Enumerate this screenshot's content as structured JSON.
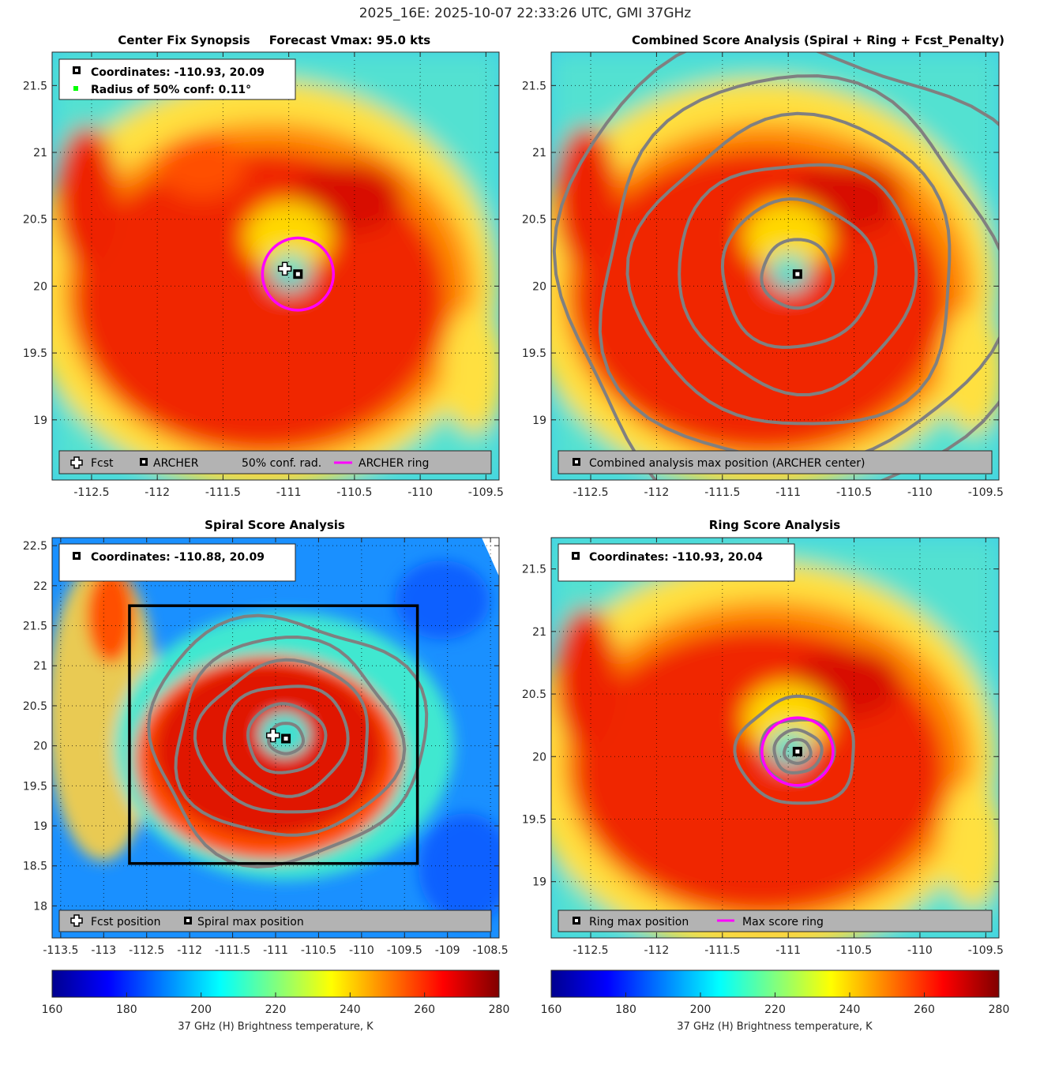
{
  "figure_title": "2025_16E: 2025-10-07 22:33:26 UTC, GMI 37GHz",
  "chart_data": [
    {
      "id": "synopsis",
      "type": "heatmap",
      "title_left": "Center Fix Synopsis",
      "title_right": "Forecast Vmax: 95.0 kts",
      "xlim": [
        -112.8,
        -109.4
      ],
      "ylim": [
        18.55,
        21.75
      ],
      "xticks": [
        -112.5,
        -112,
        -111.5,
        -111,
        -110.5,
        -110,
        -109.5
      ],
      "xtick_labels": [
        "-112.5",
        "-112",
        "-111.5",
        "-111",
        "-110.5",
        "-110",
        "-109.5"
      ],
      "yticks": [
        19,
        19.5,
        20,
        20.5,
        21,
        21.5
      ],
      "ytick_labels": [
        "19",
        "19.5",
        "20",
        "20.5",
        "21",
        "21.5"
      ],
      "center": [
        -110.93,
        20.09
      ],
      "fcst": [
        -111.03,
        20.13
      ],
      "ring": {
        "center": [
          -110.93,
          20.09
        ],
        "radius_deg": 0.27
      },
      "info_lines": [
        "Coordinates: -110.93, 20.09",
        "Radius of 50% conf: 0.11°"
      ],
      "legend": [
        "Fcst",
        "ARCHER",
        "50% conf. rad.",
        "ARCHER ring"
      ]
    },
    {
      "id": "combined",
      "type": "heatmap",
      "title": "Combined Score Analysis (Spiral + Ring + Fcst_Penalty)",
      "xlim": [
        -112.8,
        -109.4
      ],
      "ylim": [
        18.55,
        21.75
      ],
      "xticks": [
        -112.5,
        -112,
        -111.5,
        -111,
        -110.5,
        -110,
        -109.5
      ],
      "xtick_labels": [
        "-112.5",
        "-112",
        "-111.5",
        "-111",
        "-110.5",
        "-110",
        "-109.5"
      ],
      "yticks": [
        19,
        19.5,
        20,
        20.5,
        21,
        21.5
      ],
      "ytick_labels": [
        "19",
        "19.5",
        "20",
        "20.5",
        "21",
        "21.5"
      ],
      "center": [
        -110.93,
        20.09
      ],
      "contour_radii_deg": [
        0.27,
        0.58,
        0.9,
        1.22,
        1.52,
        1.85
      ],
      "legend": [
        "Combined analysis max position (ARCHER center)"
      ]
    },
    {
      "id": "spiral",
      "type": "heatmap",
      "title": "Spiral Score Analysis",
      "xlim": [
        -113.6,
        -108.4
      ],
      "ylim": [
        17.6,
        22.6
      ],
      "xticks": [
        -113.5,
        -113,
        -112.5,
        -112,
        -111.5,
        -111,
        -110.5,
        -110,
        -109.5,
        -109,
        -108.5
      ],
      "xtick_labels": [
        "-113.5",
        "-113",
        "-112.5",
        "-112",
        "-111.5",
        "-111",
        "-110.5",
        "-110",
        "-109.5",
        "-109",
        "-108.5"
      ],
      "yticks": [
        18,
        18.5,
        19,
        19.5,
        20,
        20.5,
        21,
        21.5,
        22,
        22.5
      ],
      "ytick_labels": [
        "18",
        "18.5",
        "19",
        "19.5",
        "20",
        "20.5",
        "21",
        "21.5",
        "22",
        "22.5"
      ],
      "center": [
        -110.88,
        20.09
      ],
      "fcst": [
        -111.03,
        20.13
      ],
      "box": {
        "lon": [
          -112.7,
          -109.35
        ],
        "lat": [
          18.53,
          21.75
        ]
      },
      "contour_radii_deg": [
        0.2,
        0.45,
        0.72,
        1.0,
        1.3,
        1.6
      ],
      "info_lines": [
        "Coordinates: -110.88, 20.09"
      ],
      "legend": [
        "Fcst position",
        "Spiral max position"
      ]
    },
    {
      "id": "ring",
      "type": "heatmap",
      "title": "Ring Score Analysis",
      "xlim": [
        -112.8,
        -109.4
      ],
      "ylim": [
        18.55,
        21.75
      ],
      "xticks": [
        -112.5,
        -112,
        -111.5,
        -111,
        -110.5,
        -110,
        -109.5
      ],
      "xtick_labels": [
        "-112.5",
        "-112",
        "-111.5",
        "-111",
        "-110.5",
        "-110",
        "-109.5"
      ],
      "yticks": [
        19,
        19.5,
        20,
        20.5,
        21,
        21.5
      ],
      "ytick_labels": [
        "19",
        "19.5",
        "20",
        "20.5",
        "21",
        "21.5"
      ],
      "center": [
        -110.93,
        20.04
      ],
      "ring": {
        "center": [
          -110.93,
          20.04
        ],
        "radius_deg": 0.27
      },
      "contour_radii_deg": [
        0.1,
        0.18,
        0.28,
        0.45
      ],
      "info_lines": [
        "Coordinates: -110.93, 20.04"
      ],
      "legend": [
        "Ring max position",
        "Max score ring"
      ]
    }
  ],
  "colorbars": [
    {
      "id": "left",
      "range": [
        160,
        280
      ],
      "ticks": [
        "160",
        "180",
        "200",
        "220",
        "240",
        "260",
        "280"
      ],
      "label": "37 GHz (H) Brightness temperature, K"
    },
    {
      "id": "right",
      "range": [
        160,
        280
      ],
      "ticks": [
        "160",
        "180",
        "200",
        "220",
        "240",
        "260",
        "280"
      ],
      "label": "37 GHz (H) Brightness temperature, K"
    }
  ],
  "colors": {
    "ring": "#ff00ff",
    "contour": "#808080",
    "legend_bg": "#b3b3b3",
    "conf_dot": "#00ff00"
  }
}
